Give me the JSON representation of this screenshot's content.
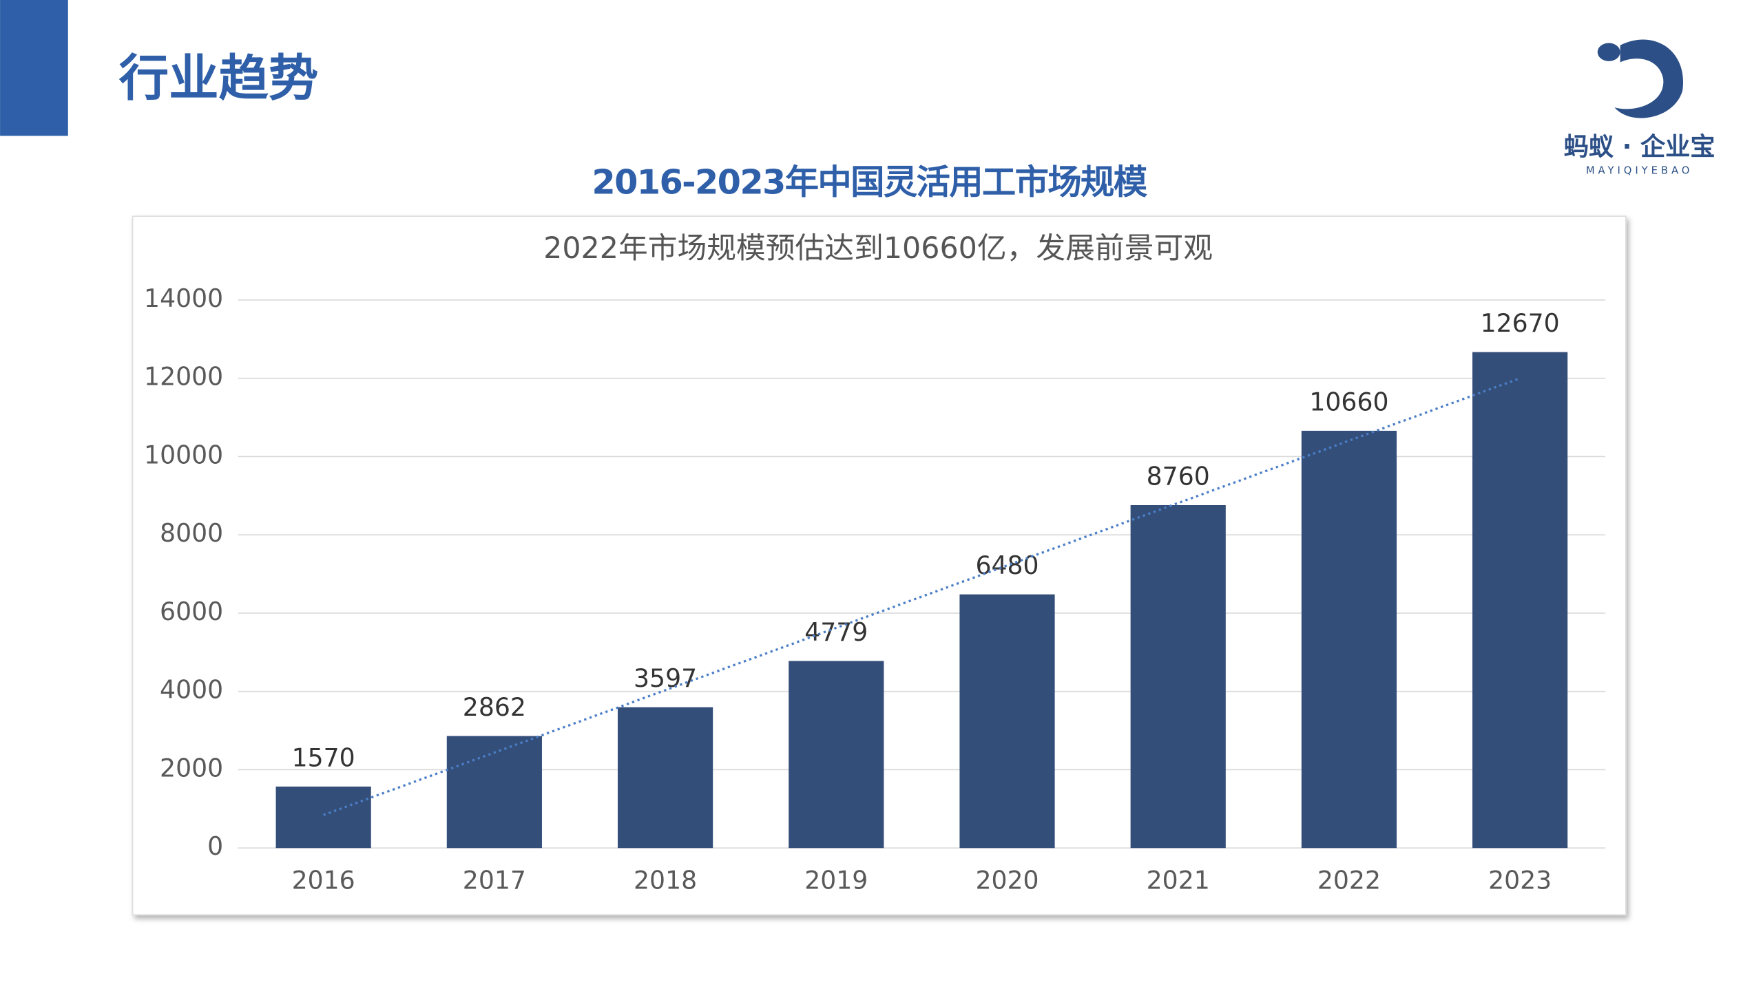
{
  "header": {
    "title": "行业趋势"
  },
  "logo": {
    "name": "蚂蚁 · 企业宝",
    "pinyin": "MAYIQIYEBAO"
  },
  "chart_data": {
    "type": "bar",
    "title": "2016-2023年中国灵活用工市场规模",
    "subtitle": "2022年市场规模预估达到10660亿，发展前景可观",
    "categories": [
      "2016",
      "2017",
      "2018",
      "2019",
      "2020",
      "2021",
      "2022",
      "2023"
    ],
    "values": [
      1570,
      2862,
      3597,
      4779,
      6480,
      8760,
      10660,
      12670
    ],
    "color": "#344e7a",
    "ylim": [
      0,
      14000
    ],
    "yticks": [
      0,
      2000,
      4000,
      6000,
      8000,
      10000,
      12000,
      14000
    ],
    "grid": true,
    "trendline": true,
    "trendline_color": "#4a7ec6"
  }
}
